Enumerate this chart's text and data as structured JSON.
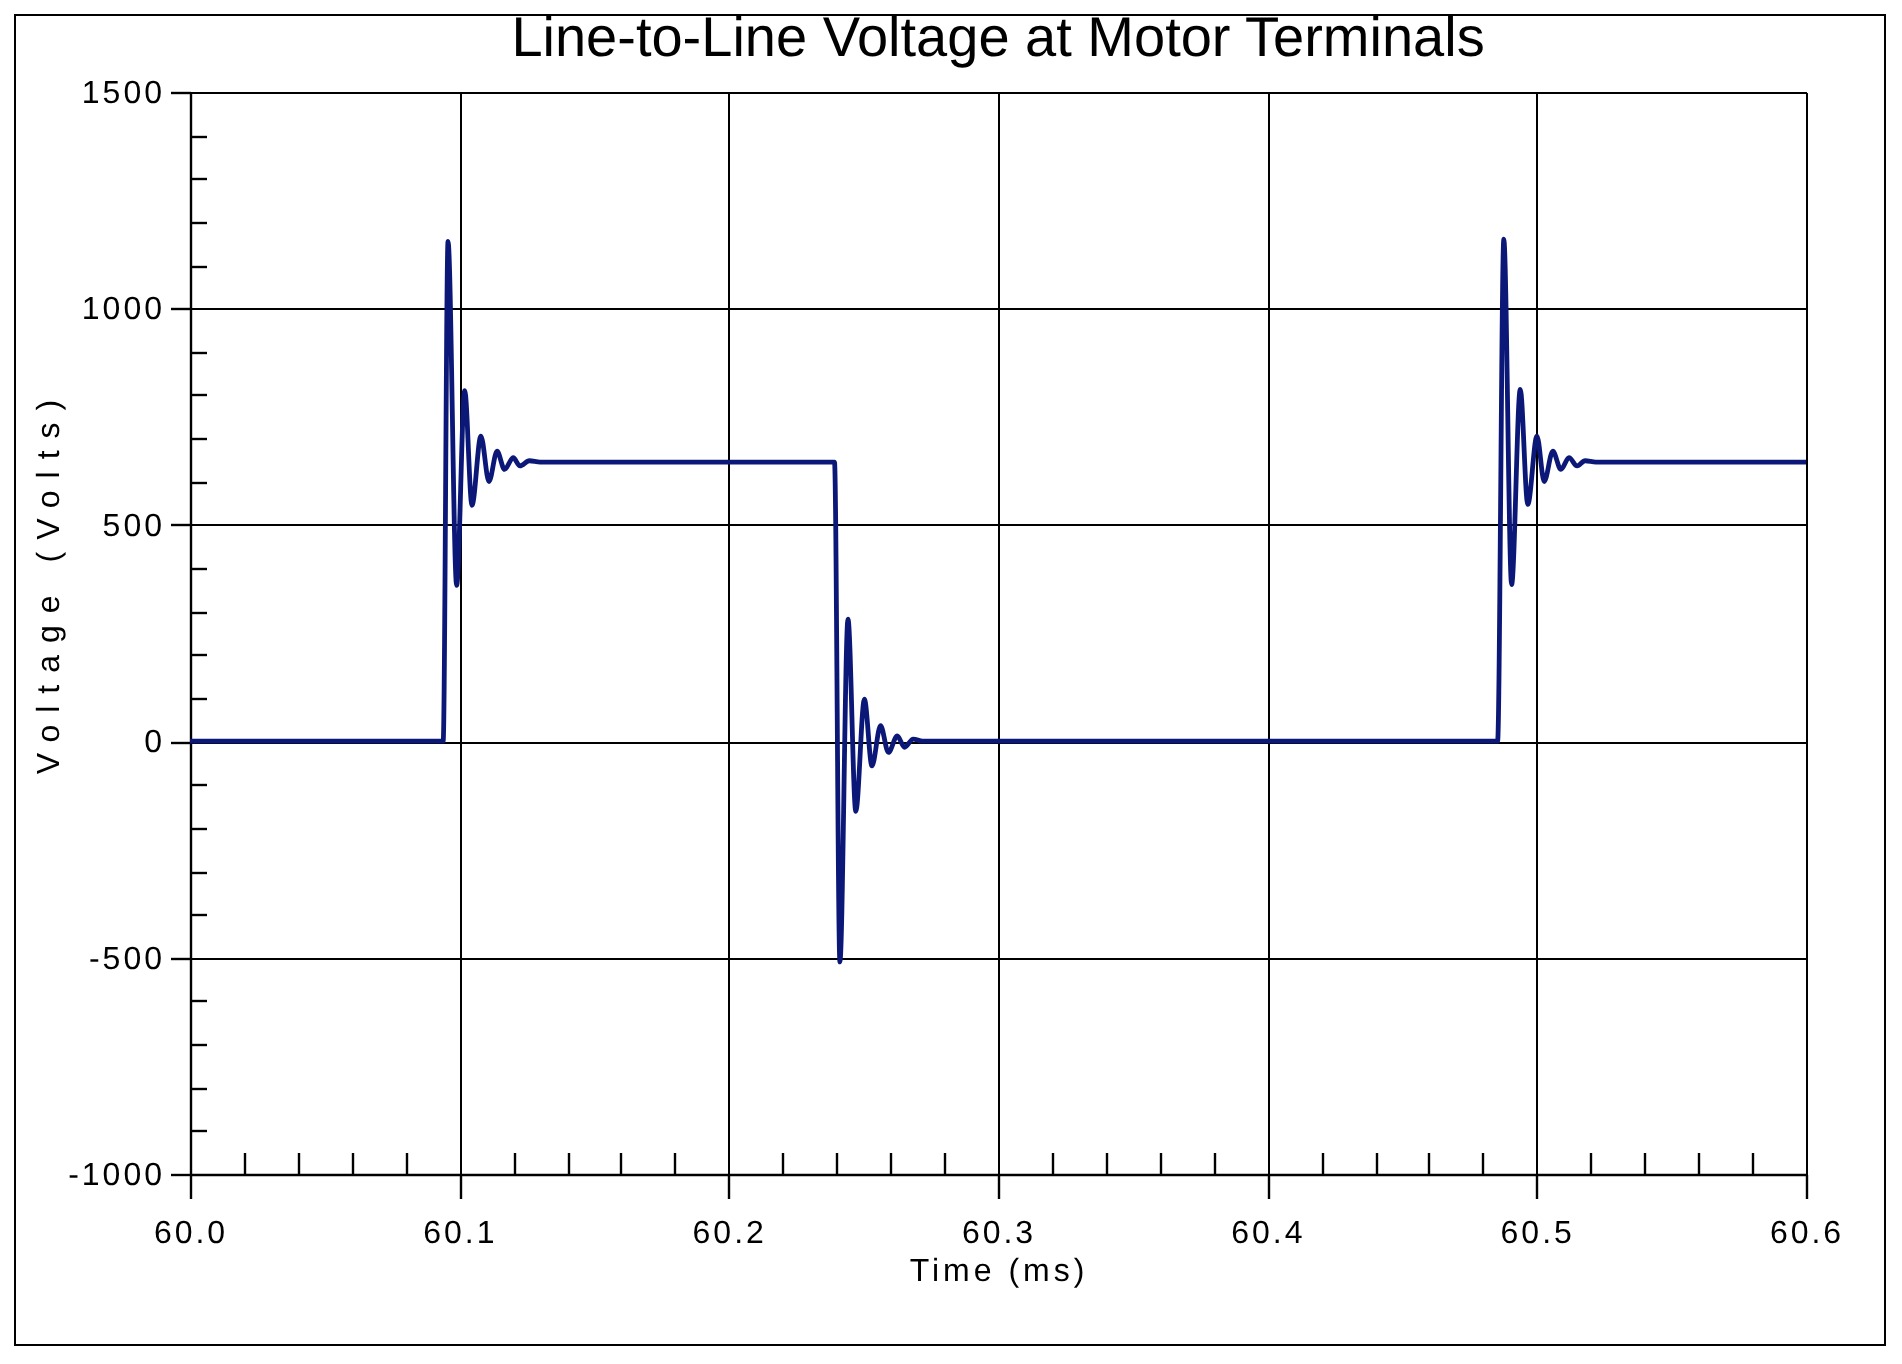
{
  "chart_data": {
    "type": "line",
    "title": "Line-to-Line Voltage at Motor Terminals",
    "xlabel": "Time (ms)",
    "ylabel": "Voltage (Volts)",
    "x": [
      60.0,
      60.094,
      60.0958,
      60.099,
      60.102,
      60.1047,
      60.108,
      60.111,
      60.114,
      60.1168,
      60.12,
      60.1225,
      60.126,
      60.13,
      60.2393,
      60.2413,
      60.2443,
      60.2472,
      60.2504,
      60.2532,
      60.2564,
      60.2593,
      60.2626,
      60.2653,
      60.2685,
      60.272,
      60.4855,
      60.4878,
      60.4907,
      60.4939,
      60.4967,
      60.5001,
      60.5028,
      60.506,
      60.509,
      60.512,
      60.515,
      60.518,
      60.522,
      60.6
    ],
    "series": [
      {
        "color": "#0c1878",
        "values": [
          0,
          0,
          1155,
          360,
          810,
          545,
          705,
          600,
          670,
          628,
          655,
          636,
          648,
          645,
          645,
          -510,
          282,
          -162,
          97,
          -57,
          36,
          -26,
          12,
          -14,
          5,
          0,
          0,
          1160,
          362,
          813,
          547,
          705,
          600,
          670,
          628,
          655,
          636,
          648,
          645,
          645
        ]
      }
    ],
    "xlim": [
      60.0,
      60.6
    ],
    "ylim": [
      -1000,
      1500
    ],
    "xticks": [
      {
        "value": 60,
        "label": "60.0"
      },
      {
        "value": 60.02,
        "label": null
      },
      {
        "value": 60.04,
        "label": null
      },
      {
        "value": 60.06,
        "label": null
      },
      {
        "value": 60.08,
        "label": null
      },
      60.1,
      {
        "value": 60.12,
        "label": null
      },
      {
        "value": 60.14,
        "label": null
      },
      {
        "value": 60.16,
        "label": null
      },
      {
        "value": 60.18,
        "label": null
      },
      60.2,
      {
        "value": 60.22,
        "label": null
      },
      {
        "value": 60.24,
        "label": null
      },
      {
        "value": 60.26,
        "label": null
      },
      {
        "value": 60.28,
        "label": null
      },
      60.3,
      {
        "value": 60.32,
        "label": null
      },
      {
        "value": 60.34,
        "label": null
      },
      {
        "value": 60.36,
        "label": null
      },
      {
        "value": 60.38,
        "label": null
      },
      60.4,
      {
        "value": 60.42,
        "label": null
      },
      {
        "value": 60.44,
        "label": null
      },
      {
        "value": 60.46,
        "label": null
      },
      {
        "value": 60.48,
        "label": null
      },
      60.5,
      {
        "value": 60.52,
        "label": null
      },
      {
        "value": 60.54,
        "label": null
      },
      {
        "value": 60.56,
        "label": null
      },
      {
        "value": 60.58,
        "label": null
      },
      60.6
    ],
    "yticks": [
      -1000,
      {
        "value": -900,
        "label": null
      },
      {
        "value": -800,
        "label": null
      },
      {
        "value": -700,
        "label": null
      },
      {
        "value": -600,
        "label": null
      },
      -500,
      {
        "value": -400,
        "label": null
      },
      {
        "value": -300,
        "label": null
      },
      {
        "value": -200,
        "label": null
      },
      {
        "value": -100,
        "label": null
      },
      0,
      {
        "value": 100,
        "label": null
      },
      {
        "value": 200,
        "label": null
      },
      {
        "value": 300,
        "label": null
      },
      {
        "value": 400,
        "label": null
      },
      500,
      {
        "value": 600,
        "label": null
      },
      {
        "value": 700,
        "label": null
      },
      {
        "value": 800,
        "label": null
      },
      {
        "value": 900,
        "label": null
      },
      1000,
      {
        "value": 1100,
        "label": null
      },
      {
        "value": 1200,
        "label": null
      },
      {
        "value": 1300,
        "label": null
      },
      {
        "value": 1400,
        "label": null
      },
      1500
    ],
    "grid": true,
    "line_style": "solid"
  }
}
